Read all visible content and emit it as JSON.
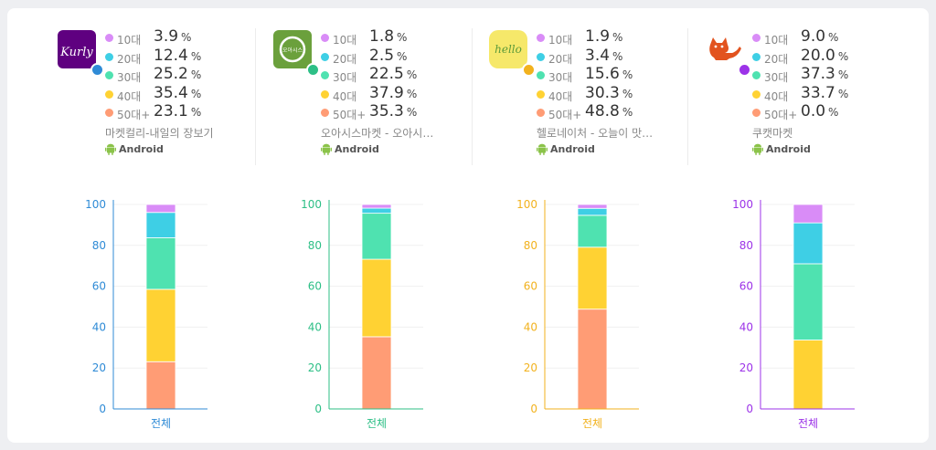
{
  "age_labels": [
    "10대",
    "20대",
    "30대",
    "40대",
    "50대+"
  ],
  "segment_colors": [
    "#d98cf7",
    "#3ecfe5",
    "#4fe2b0",
    "#ffd233",
    "#ff9c75"
  ],
  "percent_unit": "%",
  "platform_label": "Android",
  "apps": [
    {
      "name": "마켓컬리-내일의 장보기",
      "accent": "#2f8bd6",
      "logo_text": "Kurly",
      "values": [
        "3.9",
        "12.4",
        "25.2",
        "35.4",
        "23.1"
      ]
    },
    {
      "name": "오아시스마켓 - 오아시스 유...",
      "accent": "#2dbf86",
      "logo_text": "오아시스",
      "values": [
        "1.8",
        "2.5",
        "22.5",
        "37.9",
        "35.3"
      ]
    },
    {
      "name": "헬로네이처 - 오늘이 맛있는...",
      "accent": "#f2b21e",
      "logo_text": "hello",
      "values": [
        "1.9",
        "3.4",
        "15.6",
        "30.3",
        "48.8"
      ]
    },
    {
      "name": "쿠캣마켓",
      "accent": "#9c33e8",
      "logo_text": "",
      "values": [
        "9.0",
        "20.0",
        "37.3",
        "33.7",
        "0.0"
      ]
    }
  ],
  "chart_data": [
    {
      "type": "bar",
      "stacked": true,
      "title": "마켓컬리-내일의 장보기",
      "categories": [
        "전체"
      ],
      "series": [
        {
          "name": "10대",
          "values": [
            3.9
          ]
        },
        {
          "name": "20대",
          "values": [
            12.4
          ]
        },
        {
          "name": "30대",
          "values": [
            25.2
          ]
        },
        {
          "name": "40대",
          "values": [
            35.4
          ]
        },
        {
          "name": "50대+",
          "values": [
            23.1
          ]
        }
      ],
      "ylim": [
        0,
        100
      ],
      "yticks": [
        "0",
        "20",
        "40",
        "60",
        "80",
        "100"
      ],
      "axis_color": "#2f8bd6"
    },
    {
      "type": "bar",
      "stacked": true,
      "title": "오아시스마켓 - 오아시스 유...",
      "categories": [
        "전체"
      ],
      "series": [
        {
          "name": "10대",
          "values": [
            1.8
          ]
        },
        {
          "name": "20대",
          "values": [
            2.5
          ]
        },
        {
          "name": "30대",
          "values": [
            22.5
          ]
        },
        {
          "name": "40대",
          "values": [
            37.9
          ]
        },
        {
          "name": "50대+",
          "values": [
            35.3
          ]
        }
      ],
      "ylim": [
        0,
        100
      ],
      "yticks": [
        "0",
        "20",
        "40",
        "60",
        "80",
        "100"
      ],
      "axis_color": "#2dbf86"
    },
    {
      "type": "bar",
      "stacked": true,
      "title": "헬로네이처 - 오늘이 맛있는...",
      "categories": [
        "전체"
      ],
      "series": [
        {
          "name": "10대",
          "values": [
            1.9
          ]
        },
        {
          "name": "20대",
          "values": [
            3.4
          ]
        },
        {
          "name": "30대",
          "values": [
            15.6
          ]
        },
        {
          "name": "40대",
          "values": [
            30.3
          ]
        },
        {
          "name": "50대+",
          "values": [
            48.8
          ]
        }
      ],
      "ylim": [
        0,
        100
      ],
      "yticks": [
        "0",
        "20",
        "40",
        "60",
        "80",
        "100"
      ],
      "axis_color": "#f2b21e"
    },
    {
      "type": "bar",
      "stacked": true,
      "title": "쿠캣마켓",
      "categories": [
        "전체"
      ],
      "series": [
        {
          "name": "10대",
          "values": [
            9.0
          ]
        },
        {
          "name": "20대",
          "values": [
            20.0
          ]
        },
        {
          "name": "30대",
          "values": [
            37.3
          ]
        },
        {
          "name": "40대",
          "values": [
            33.7
          ]
        },
        {
          "name": "50대+",
          "values": [
            0.0
          ]
        }
      ],
      "ylim": [
        0,
        100
      ],
      "yticks": [
        "0",
        "20",
        "40",
        "60",
        "80",
        "100"
      ],
      "axis_color": "#9c33e8"
    }
  ]
}
